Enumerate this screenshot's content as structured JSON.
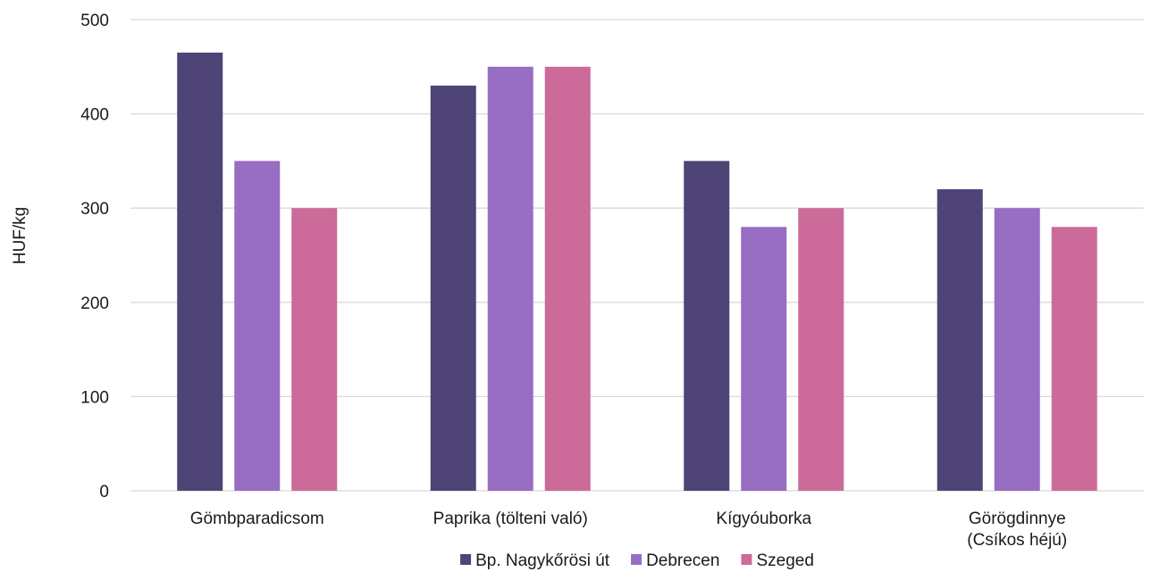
{
  "chart_data": {
    "type": "bar",
    "title": "",
    "xlabel": "",
    "ylabel": "HUF/kg",
    "ylim": [
      0,
      500
    ],
    "yticks": [
      0,
      100,
      200,
      300,
      400,
      500
    ],
    "categories": [
      [
        "Gömbparadicsom"
      ],
      [
        "Paprika (tölteni való)"
      ],
      [
        "Kígyóuborka"
      ],
      [
        "Görögdinnye",
        "(Csíkos héjú)"
      ]
    ],
    "series": [
      {
        "name": "Bp. Nagykőrösi út",
        "color": "#4e4476",
        "values": [
          465,
          430,
          350,
          320
        ]
      },
      {
        "name": "Debrecen",
        "color": "#986dc4",
        "values": [
          350,
          450,
          280,
          300
        ]
      },
      {
        "name": "Szeged",
        "color": "#cc6a9a",
        "values": [
          300,
          450,
          300,
          280
        ]
      }
    ],
    "grid": true,
    "legend_position": "bottom"
  }
}
